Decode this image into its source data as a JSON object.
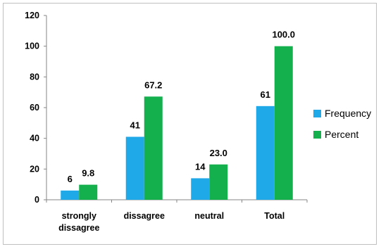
{
  "chart_data": {
    "type": "bar",
    "categories": [
      "strongly dissagree",
      "dissagree",
      "neutral",
      "Total"
    ],
    "series": [
      {
        "name": "Frequency",
        "values": [
          6,
          41,
          14,
          61
        ],
        "labels": [
          "6",
          "41",
          "14",
          "61"
        ],
        "color": "#1fa9e8"
      },
      {
        "name": "Percent",
        "values": [
          9.8,
          67.2,
          23.0,
          100.0
        ],
        "labels": [
          "9.8",
          "67.2",
          "23.0",
          "100.0"
        ],
        "color": "#14b04e"
      }
    ],
    "title": "",
    "xlabel": "",
    "ylabel": "",
    "ylim": [
      0,
      120
    ],
    "yticks": [
      "0",
      "20",
      "40",
      "60",
      "80",
      "100",
      "120"
    ],
    "grid": false,
    "legend": "right"
  }
}
